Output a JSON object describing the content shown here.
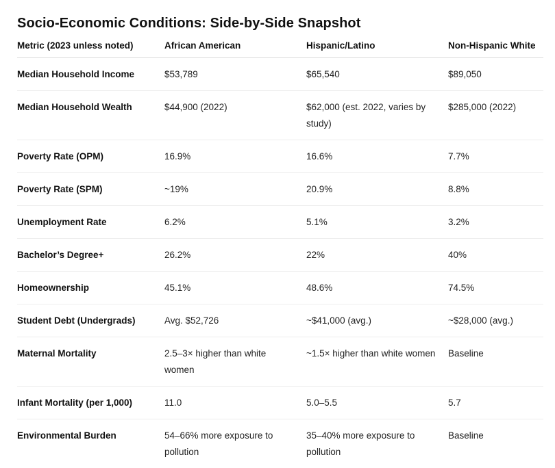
{
  "title": "Socio-Economic Conditions: Side-by-Side Snapshot",
  "table": {
    "headers": [
      "Metric (2023 unless noted)",
      "African American",
      "Hispanic/Latino",
      "Non-Hispanic White"
    ],
    "rows": [
      [
        "Median Household Income",
        "$53,789",
        "$65,540",
        "$89,050"
      ],
      [
        "Median Household Wealth",
        "$44,900 (2022)",
        "$62,000 (est. 2022, varies by study)",
        "$285,000 (2022)"
      ],
      [
        "Poverty Rate (OPM)",
        "16.9%",
        "16.6%",
        "7.7%"
      ],
      [
        "Poverty Rate (SPM)",
        "~19%",
        "20.9%",
        "8.8%"
      ],
      [
        "Unemployment Rate",
        "6.2%",
        "5.1%",
        "3.2%"
      ],
      [
        "Bachelor’s Degree+",
        "26.2%",
        "22%",
        "40%"
      ],
      [
        "Homeownership",
        "45.1%",
        "48.6%",
        "74.5%"
      ],
      [
        "Student Debt (Undergrads)",
        "Avg. $52,726",
        "~$41,000 (avg.)",
        "~$28,000 (avg.)"
      ],
      [
        "Maternal Mortality",
        "2.5–3× higher than white women",
        "~1.5× higher than white women",
        "Baseline"
      ],
      [
        "Infant Mortality (per 1,000)",
        "11.0",
        "5.0–5.5",
        "5.7"
      ],
      [
        "Environmental Burden",
        "54–66% more exposure to pollution",
        "35–40% more exposure to pollution",
        "Baseline"
      ]
    ]
  }
}
